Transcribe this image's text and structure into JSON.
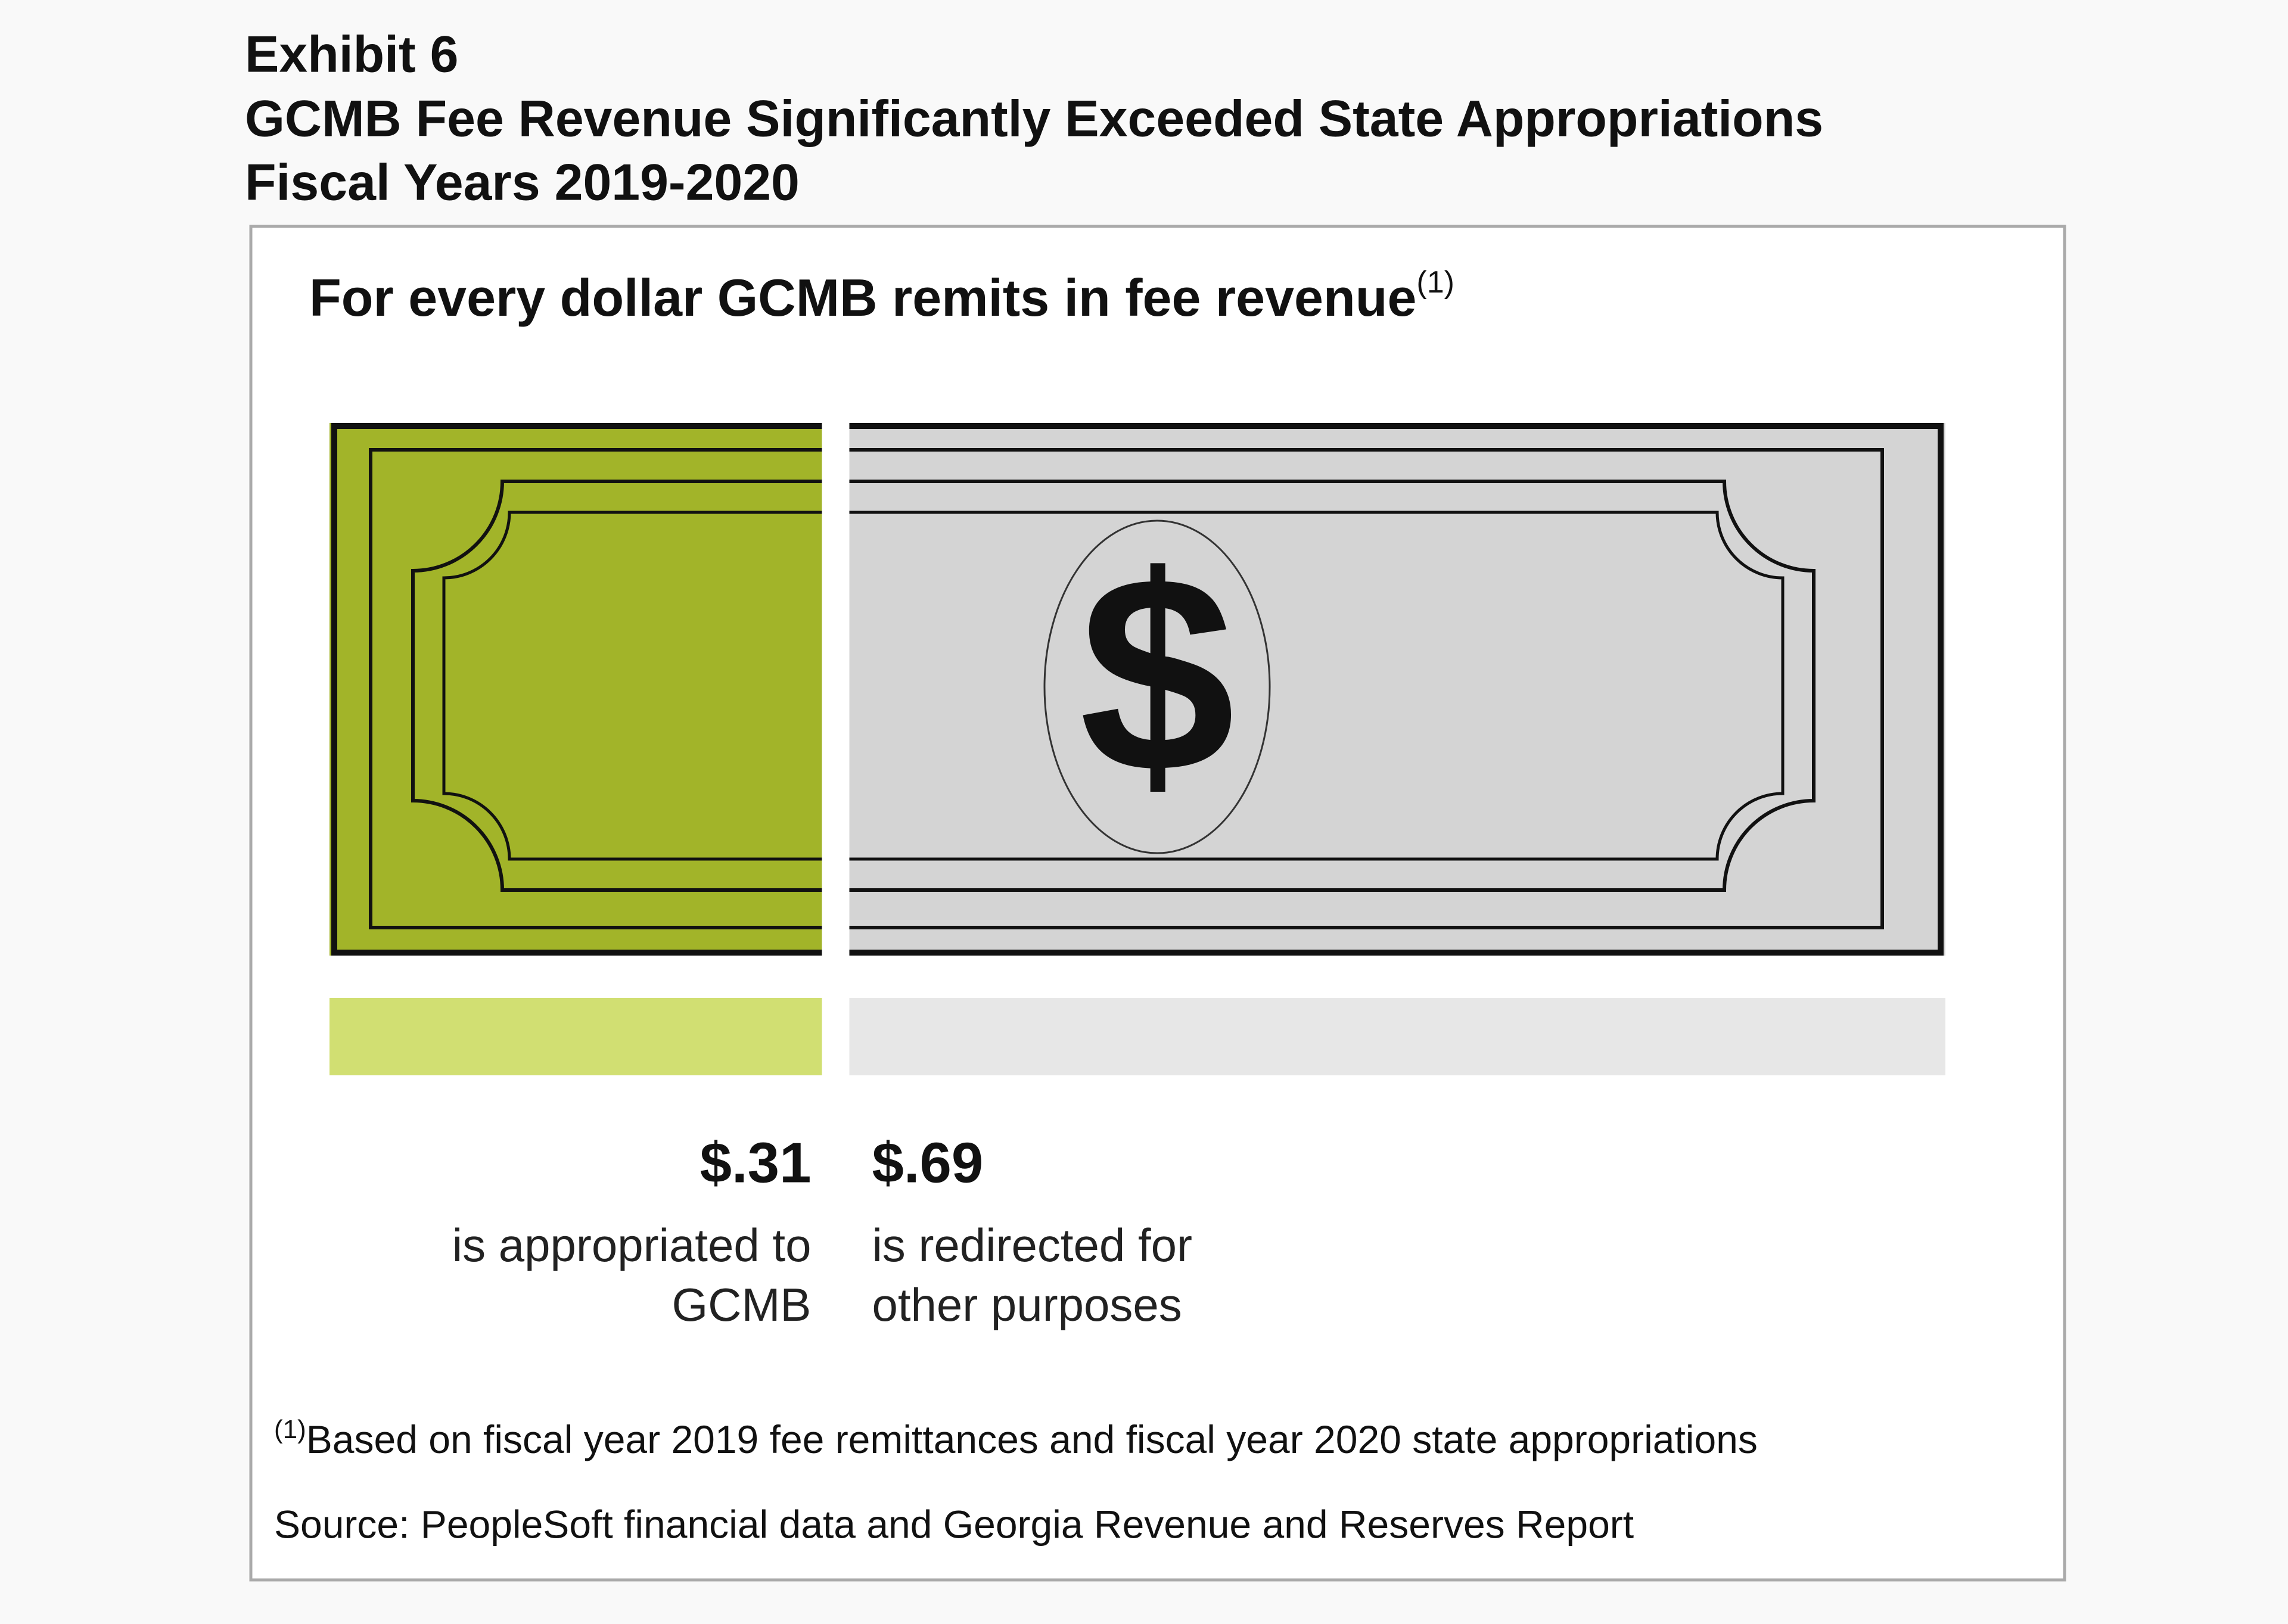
{
  "chart_data": {
    "type": "bar",
    "exhibit": "Exhibit 6",
    "title": "GCMB Fee Revenue Significantly Exceeded State Appropriations",
    "subtitle": "Fiscal Years 2019-2020",
    "heading": "For every dollar GCMB remits in fee revenue",
    "heading_note": "(1)",
    "symbol": "$",
    "categories": [
      "is appropriated to GCMB",
      "is redirected for other purposes"
    ],
    "values": [
      0.31,
      0.69
    ],
    "value_labels": [
      "$.31",
      "$.69"
    ],
    "colors": [
      "#a2b429",
      "#d4d4d4"
    ],
    "bar_colors": [
      "#d1df72",
      "#e7e7e7"
    ],
    "footnote_mark": "(1)",
    "footnote": "Based on fiscal year 2019 fee remittances and fiscal year 2020 state appropriations",
    "source": "Source: PeopleSoft financial data and Georgia Revenue and Reserves Report"
  }
}
